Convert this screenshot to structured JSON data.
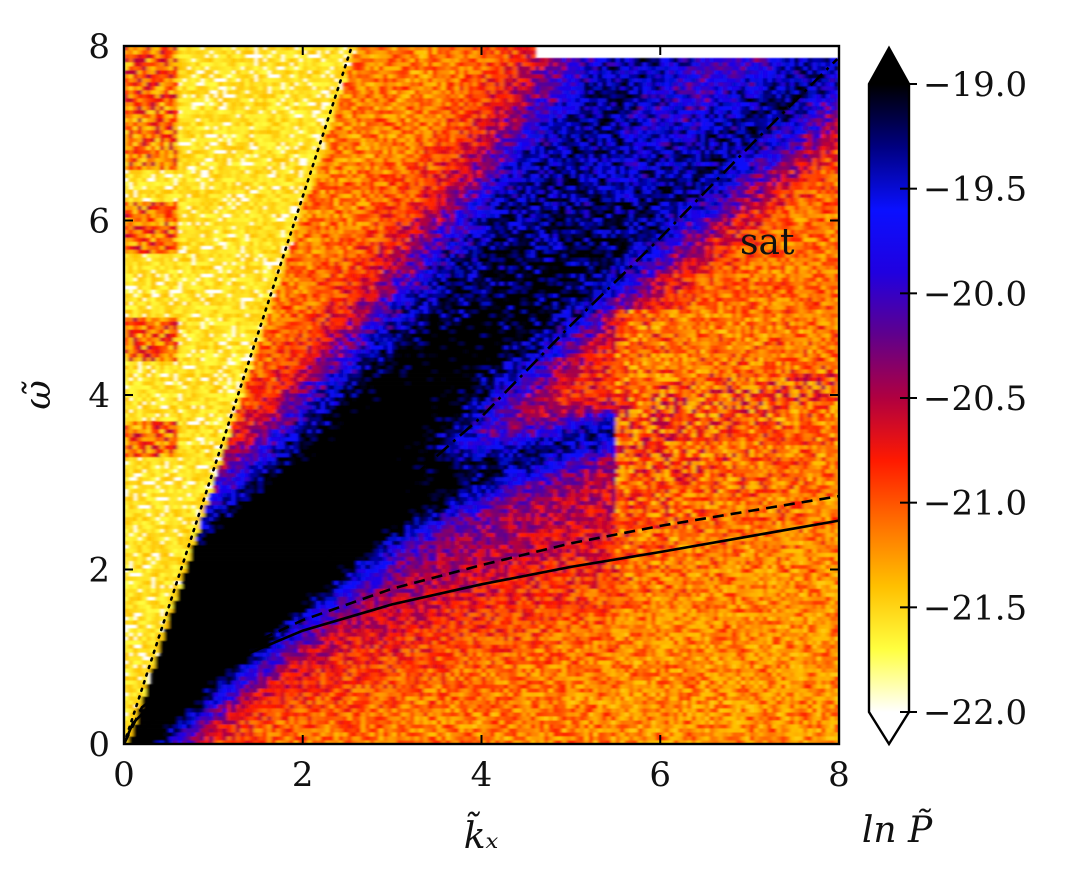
{
  "chart_data": {
    "type": "heatmap",
    "xlabel": "k̃ₓ",
    "ylabel": "ω̃",
    "xlim": [
      0,
      8
    ],
    "ylim": [
      0,
      8
    ],
    "x_ticks": [
      "0",
      "2",
      "4",
      "6",
      "8"
    ],
    "y_ticks": [
      "0",
      "2",
      "4",
      "6",
      "8"
    ],
    "annotation": "sat",
    "colorbar": {
      "label": "ln P̃",
      "range": [
        -22.0,
        -19.0
      ],
      "ticks": [
        "−22.0",
        "−21.5",
        "−21.0",
        "−20.5",
        "−20.0",
        "−19.5",
        "−19.0"
      ],
      "extend": "both",
      "colors": [
        "#ffffff",
        "#ffff40",
        "#ffc000",
        "#ff7000",
        "#ff1a00",
        "#b00040",
        "#60008c",
        "#2000e0",
        "#0a10ff",
        "#000080",
        "#000000"
      ]
    },
    "series": [
      {
        "style": "dotted",
        "x": [
          0,
          2.55
        ],
        "y": [
          0,
          8
        ]
      },
      {
        "style": "dashdot",
        "x": [
          0.2,
          1,
          2,
          3,
          4,
          5,
          6,
          7,
          7.98
        ],
        "y": [
          0.15,
          0.95,
          1.85,
          2.85,
          3.75,
          4.8,
          5.8,
          6.85,
          7.85
        ]
      },
      {
        "style": "dashed",
        "x": [
          0,
          0.2,
          0.5,
          1,
          2,
          3,
          4,
          5,
          6,
          7,
          8
        ],
        "y": [
          0,
          0.42,
          0.66,
          0.95,
          1.42,
          1.78,
          2.05,
          2.3,
          2.5,
          2.67,
          2.84
        ]
      },
      {
        "style": "solid",
        "x": [
          0,
          0.1,
          0.3,
          0.6,
          1,
          2,
          3,
          4,
          5,
          6,
          7,
          8
        ],
        "y": [
          0,
          0.24,
          0.44,
          0.65,
          0.87,
          1.3,
          1.6,
          1.83,
          2.03,
          2.2,
          2.38,
          2.56
        ]
      }
    ],
    "power_ridges": [
      {
        "x": [
          0.8,
          1.5,
          2.2,
          3.0,
          3.8,
          4.6,
          5.4
        ],
        "y": [
          1.4,
          2.4,
          3.3,
          4.3,
          5.3,
          6.3,
          7.4
        ]
      },
      {
        "x": [
          1.0,
          2.0,
          3.0,
          4.2,
          5.4,
          6.5,
          7.8
        ],
        "y": [
          1.4,
          2.2,
          2.7,
          3.2,
          3.6,
          3.9,
          4.1
        ]
      },
      {
        "x": [
          1.2,
          2.2,
          3.2,
          4.3
        ],
        "y": [
          1.6,
          2.6,
          3.6,
          4.6
        ]
      }
    ]
  }
}
